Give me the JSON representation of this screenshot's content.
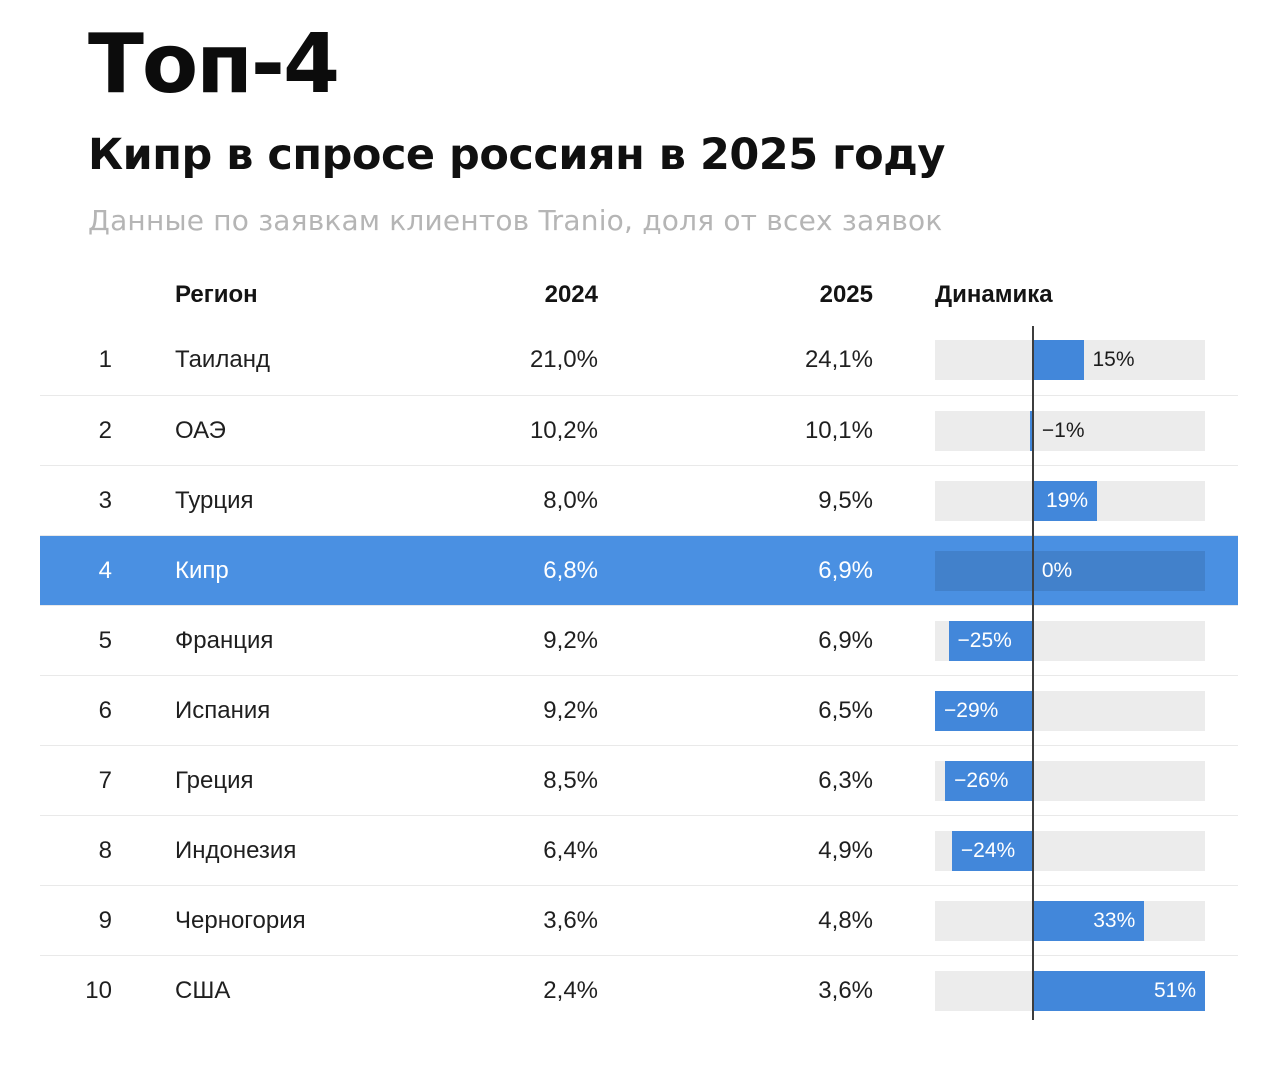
{
  "header": {
    "title": "Топ-4",
    "subtitle": "Кипр в спросе россиян в 2025 году",
    "caption": "Данные по заявкам клиентов Tranio, доля от всех заявок"
  },
  "table": {
    "columns": {
      "region": "Регион",
      "y2024": "2024",
      "y2025": "2025",
      "dynamics": "Динамика"
    },
    "rows": [
      {
        "rank": "1",
        "region": "Таиланд",
        "v2024": "21,0%",
        "v2025": "24,1%",
        "dyn": 15,
        "dyn_label": "15%",
        "label_inside": false,
        "highlight": false
      },
      {
        "rank": "2",
        "region": "ОАЭ",
        "v2024": "10,2%",
        "v2025": "10,1%",
        "dyn": -1,
        "dyn_label": "−1%",
        "label_inside": false,
        "highlight": false
      },
      {
        "rank": "3",
        "region": "Турция",
        "v2024": "8,0%",
        "v2025": "9,5%",
        "dyn": 19,
        "dyn_label": "19%",
        "label_inside": true,
        "highlight": false
      },
      {
        "rank": "4",
        "region": "Кипр",
        "v2024": "6,8%",
        "v2025": "6,9%",
        "dyn": 0,
        "dyn_label": "0%",
        "label_inside": false,
        "highlight": true
      },
      {
        "rank": "5",
        "region": "Франция",
        "v2024": "9,2%",
        "v2025": "6,9%",
        "dyn": -25,
        "dyn_label": "−25%",
        "label_inside": true,
        "highlight": false
      },
      {
        "rank": "6",
        "region": "Испания",
        "v2024": "9,2%",
        "v2025": "6,5%",
        "dyn": -29,
        "dyn_label": "−29%",
        "label_inside": true,
        "highlight": false
      },
      {
        "rank": "7",
        "region": "Греция",
        "v2024": "8,5%",
        "v2025": "6,3%",
        "dyn": -26,
        "dyn_label": "−26%",
        "label_inside": true,
        "highlight": false
      },
      {
        "rank": "8",
        "region": "Индонезия",
        "v2024": "6,4%",
        "v2025": "4,9%",
        "dyn": -24,
        "dyn_label": "−24%",
        "label_inside": true,
        "highlight": false
      },
      {
        "rank": "9",
        "region": "Черногория",
        "v2024": "3,6%",
        "v2025": "4,8%",
        "dyn": 33,
        "dyn_label": "33%",
        "label_inside": true,
        "highlight": false
      },
      {
        "rank": "10",
        "region": "США",
        "v2024": "2,4%",
        "v2025": "3,6%",
        "dyn": 51,
        "dyn_label": "51%",
        "label_inside": true,
        "highlight": false
      }
    ]
  },
  "chart_data": {
    "type": "table",
    "title": "Топ-4 — Кипр в спросе россиян в 2025 году",
    "subtitle": "Данные по заявкам клиентов Tranio, доля от всех заявок",
    "columns": [
      "Регион",
      "2024",
      "2025",
      "Динамика"
    ],
    "highlighted_region": "Кипр",
    "rows": [
      {
        "rank": 1,
        "region": "Таиланд",
        "share_2024_pct": 21.0,
        "share_2025_pct": 24.1,
        "dynamics_pct": 15
      },
      {
        "rank": 2,
        "region": "ОАЭ",
        "share_2024_pct": 10.2,
        "share_2025_pct": 10.1,
        "dynamics_pct": -1
      },
      {
        "rank": 3,
        "region": "Турция",
        "share_2024_pct": 8.0,
        "share_2025_pct": 9.5,
        "dynamics_pct": 19
      },
      {
        "rank": 4,
        "region": "Кипр",
        "share_2024_pct": 6.8,
        "share_2025_pct": 6.9,
        "dynamics_pct": 0
      },
      {
        "rank": 5,
        "region": "Франция",
        "share_2024_pct": 9.2,
        "share_2025_pct": 6.9,
        "dynamics_pct": -25
      },
      {
        "rank": 6,
        "region": "Испания",
        "share_2024_pct": 9.2,
        "share_2025_pct": 6.5,
        "dynamics_pct": -29
      },
      {
        "rank": 7,
        "region": "Греция",
        "share_2024_pct": 8.5,
        "share_2025_pct": 6.3,
        "dynamics_pct": -26
      },
      {
        "rank": 8,
        "region": "Индонезия",
        "share_2024_pct": 6.4,
        "share_2025_pct": 4.9,
        "dynamics_pct": -24
      },
      {
        "rank": 9,
        "region": "Черногория",
        "share_2024_pct": 3.6,
        "share_2025_pct": 4.8,
        "dynamics_pct": 33
      },
      {
        "rank": 10,
        "region": "США",
        "share_2024_pct": 2.4,
        "share_2025_pct": 3.6,
        "dynamics_pct": 51
      }
    ],
    "dynamics_axis": {
      "min": -29,
      "max": 51,
      "baseline": 0,
      "unit": "%"
    },
    "legend_position": "none",
    "grid": false
  },
  "colors": {
    "bar_blue": "#4287da",
    "highlight_row_blue": "#4a90e2",
    "track_gray": "#ececec",
    "caption_gray": "#b5b5b5",
    "text_dark": "#1c1c1c",
    "axis_line": "#3e3e3e",
    "separator": "#e9e9e9"
  }
}
